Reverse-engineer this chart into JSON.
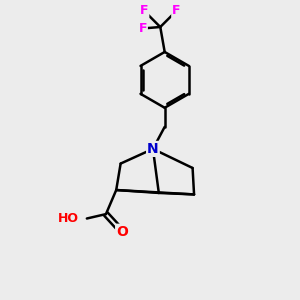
{
  "background_color": "#ececec",
  "atom_colors": {
    "C": "#000000",
    "N": "#0000cc",
    "O": "#ff0000",
    "F": "#ff00ff",
    "H": "#6aaf8b"
  },
  "bond_color": "#000000",
  "bond_width": 1.8,
  "figsize": [
    3.0,
    3.0
  ],
  "dpi": 100
}
